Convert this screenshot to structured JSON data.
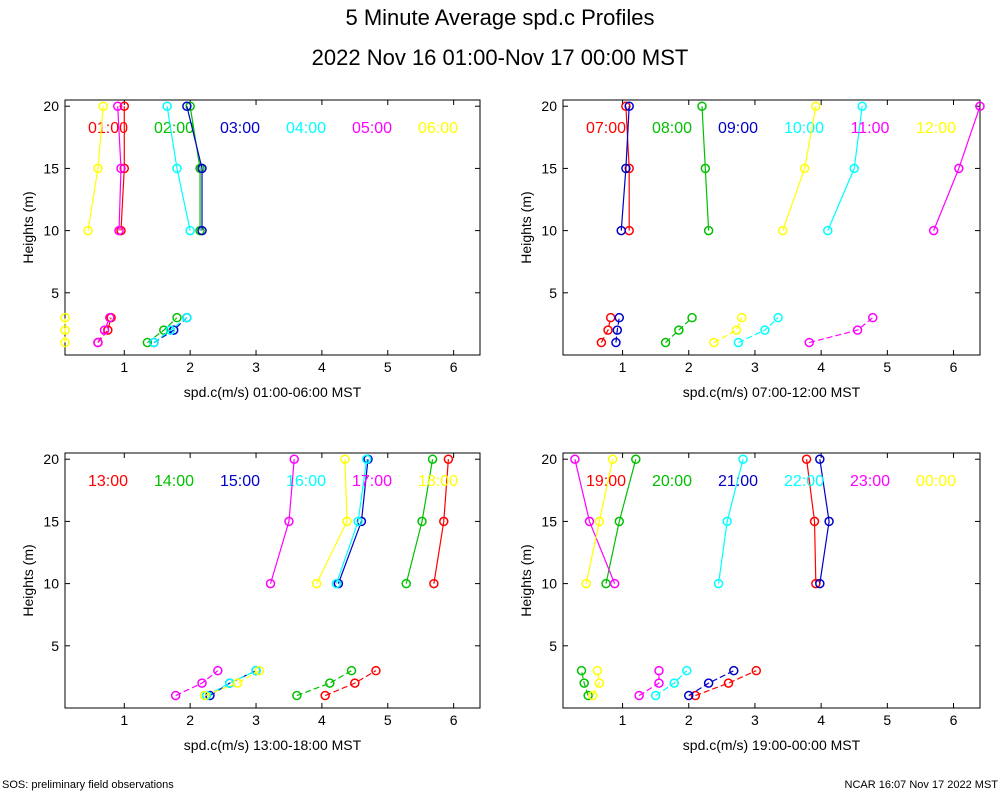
{
  "title": "5 Minute Average spd.c Profiles",
  "subtitle": "2022 Nov 16 01:00-Nov 17 00:00 MST",
  "footer_left": "SOS: preliminary field observations",
  "footer_right": "NCAR 16:07 Nov 17 2022 MST",
  "colors": {
    "red": "#ff0000",
    "green": "#00c000",
    "blue": "#0000c8",
    "cyan": "#00ffff",
    "magenta": "#ff00ff",
    "yellow": "#ffff00"
  },
  "chart_data": [
    {
      "type": "line",
      "xlabel": "spd.c(m/s) 01:00-06:00 MST",
      "ylabel": "Heights (m)",
      "xlim": [
        0.1,
        6.4
      ],
      "ylim": [
        0,
        20.5
      ],
      "xticks": [
        1,
        2,
        3,
        4,
        5,
        6
      ],
      "yticks": [
        5,
        10,
        15,
        20
      ],
      "heights": [
        1,
        2,
        3,
        10,
        15,
        20
      ],
      "series": [
        {
          "name": "01:00",
          "color": "red",
          "x": [
            0.6,
            0.75,
            0.8,
            0.95,
            1.0,
            1.0
          ]
        },
        {
          "name": "02:00",
          "color": "green",
          "x": [
            1.35,
            1.6,
            1.8,
            2.15,
            2.15,
            2.0
          ]
        },
        {
          "name": "03:00",
          "color": "blue",
          "x": [
            1.45,
            1.75,
            1.95,
            2.18,
            2.18,
            1.95
          ]
        },
        {
          "name": "04:00",
          "color": "cyan",
          "x": [
            1.45,
            1.7,
            1.95,
            2.0,
            1.8,
            1.65
          ]
        },
        {
          "name": "05:00",
          "color": "magenta",
          "x": [
            0.6,
            0.7,
            0.78,
            0.92,
            0.95,
            0.9
          ]
        },
        {
          "name": "06:00",
          "color": "yellow",
          "x": [
            0.1,
            0.1,
            0.1,
            0.45,
            0.6,
            0.68
          ]
        }
      ]
    },
    {
      "type": "line",
      "xlabel": "spd.c(m/s) 07:00-12:00 MST",
      "ylabel": "Heights (m)",
      "xlim": [
        0.1,
        6.4
      ],
      "ylim": [
        0,
        20.5
      ],
      "xticks": [
        1,
        2,
        3,
        4,
        5,
        6
      ],
      "yticks": [
        5,
        10,
        15,
        20
      ],
      "heights": [
        1,
        2,
        3,
        10,
        15,
        20
      ],
      "series": [
        {
          "name": "07:00",
          "color": "red",
          "x": [
            0.68,
            0.78,
            0.82,
            1.1,
            1.1,
            1.05
          ]
        },
        {
          "name": "08:00",
          "color": "green",
          "x": [
            1.65,
            1.85,
            2.05,
            2.3,
            2.25,
            2.2
          ]
        },
        {
          "name": "09:00",
          "color": "blue",
          "x": [
            0.9,
            0.92,
            0.95,
            0.98,
            1.05,
            1.1
          ]
        },
        {
          "name": "10:00",
          "color": "cyan",
          "x": [
            2.75,
            3.15,
            3.35,
            4.1,
            4.5,
            4.62
          ]
        },
        {
          "name": "11:00",
          "color": "magenta",
          "x": [
            3.82,
            4.55,
            4.78,
            5.7,
            6.08,
            6.4
          ]
        },
        {
          "name": "12:00",
          "color": "yellow",
          "x": [
            2.38,
            2.72,
            2.8,
            3.42,
            3.75,
            3.92
          ]
        }
      ]
    },
    {
      "type": "line",
      "xlabel": "spd.c(m/s) 13:00-18:00 MST",
      "ylabel": "Heights (m)",
      "xlim": [
        0.1,
        6.4
      ],
      "ylim": [
        0,
        20.5
      ],
      "xticks": [
        1,
        2,
        3,
        4,
        5,
        6
      ],
      "yticks": [
        5,
        10,
        15,
        20
      ],
      "heights": [
        1,
        2,
        3,
        10,
        15,
        20
      ],
      "series": [
        {
          "name": "13:00",
          "color": "red",
          "x": [
            4.05,
            4.5,
            4.82,
            5.7,
            5.85,
            5.92
          ]
        },
        {
          "name": "14:00",
          "color": "green",
          "x": [
            3.62,
            4.12,
            4.45,
            5.28,
            5.52,
            5.68
          ]
        },
        {
          "name": "15:00",
          "color": "blue",
          "x": [
            2.3,
            2.6,
            3.0,
            4.25,
            4.6,
            4.7
          ]
        },
        {
          "name": "16:00",
          "color": "cyan",
          "x": [
            2.25,
            2.6,
            3.0,
            4.22,
            4.55,
            4.68
          ]
        },
        {
          "name": "17:00",
          "color": "magenta",
          "x": [
            1.78,
            2.18,
            2.42,
            3.22,
            3.5,
            3.58
          ]
        },
        {
          "name": "18:00",
          "color": "yellow",
          "x": [
            2.22,
            2.72,
            3.05,
            3.92,
            4.38,
            4.35
          ]
        }
      ]
    },
    {
      "type": "line",
      "xlabel": "spd.c(m/s) 19:00-00:00 MST",
      "ylabel": "Heights (m)",
      "xlim": [
        0.1,
        6.4
      ],
      "ylim": [
        0,
        20.5
      ],
      "xticks": [
        1,
        2,
        3,
        4,
        5,
        6
      ],
      "yticks": [
        5,
        10,
        15,
        20
      ],
      "heights": [
        1,
        2,
        3,
        10,
        15,
        20
      ],
      "series": [
        {
          "name": "19:00",
          "color": "red",
          "x": [
            2.1,
            2.6,
            3.02,
            3.92,
            3.9,
            3.78
          ]
        },
        {
          "name": "20:00",
          "color": "green",
          "x": [
            0.48,
            0.42,
            0.38,
            0.75,
            0.95,
            1.2
          ]
        },
        {
          "name": "21:00",
          "color": "blue",
          "x": [
            2.0,
            2.3,
            2.68,
            3.98,
            4.12,
            3.98
          ]
        },
        {
          "name": "22:00",
          "color": "cyan",
          "x": [
            1.5,
            1.78,
            1.97,
            2.45,
            2.58,
            2.82
          ]
        },
        {
          "name": "23:00",
          "color": "magenta",
          "x": [
            1.25,
            1.55,
            1.55,
            0.88,
            0.5,
            0.28
          ]
        },
        {
          "name": "00:00",
          "color": "yellow",
          "x": [
            0.55,
            0.65,
            0.62,
            0.45,
            0.65,
            0.85
          ]
        }
      ]
    }
  ]
}
